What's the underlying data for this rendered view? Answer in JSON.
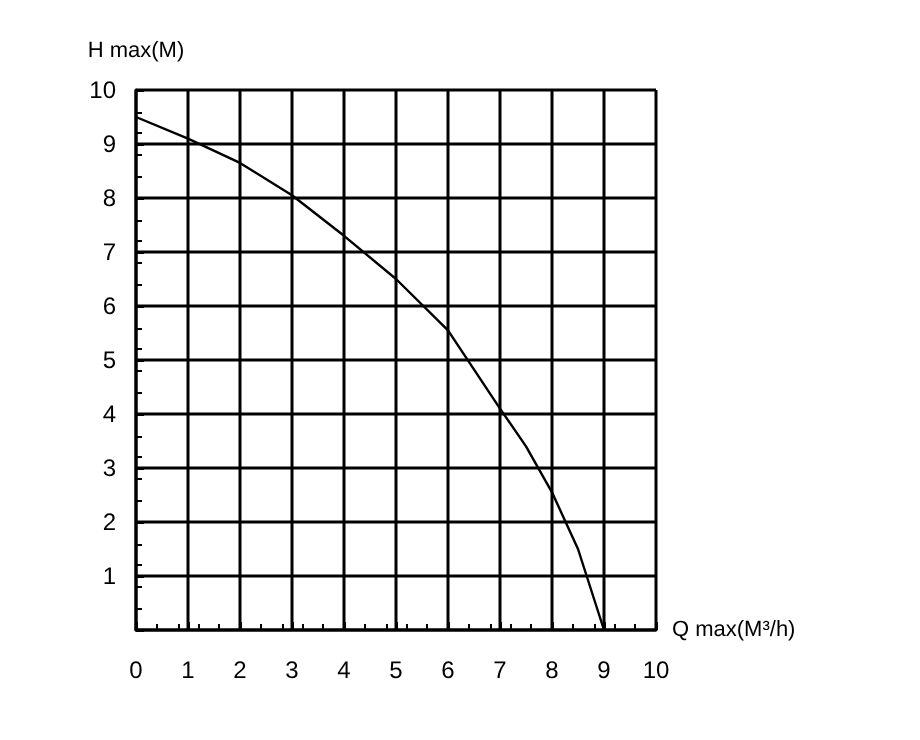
{
  "chart_data": {
    "type": "line",
    "xlabel": "Q max(M³/h)",
    "ylabel": "H max(M)",
    "x": [
      0,
      1,
      2,
      3,
      4,
      5,
      6,
      7,
      7.5,
      8,
      8.5,
      9
    ],
    "series": [
      {
        "color": "#000000",
        "values": [
          9.5,
          9.1,
          8.65,
          8.05,
          7.3,
          6.5,
          5.55,
          4.1,
          3.4,
          2.55,
          1.5,
          0
        ]
      }
    ],
    "xlim": [
      0,
      10
    ],
    "ylim": [
      0,
      10
    ],
    "xticks": [
      0,
      1,
      2,
      3,
      4,
      5,
      6,
      7,
      8,
      9,
      10
    ],
    "yticks": [
      {
        "value": 0,
        "label": null
      },
      1,
      2,
      3,
      4,
      5,
      6,
      7,
      8,
      9,
      10
    ],
    "grid": true,
    "marker": "none",
    "line_style": "solid"
  }
}
